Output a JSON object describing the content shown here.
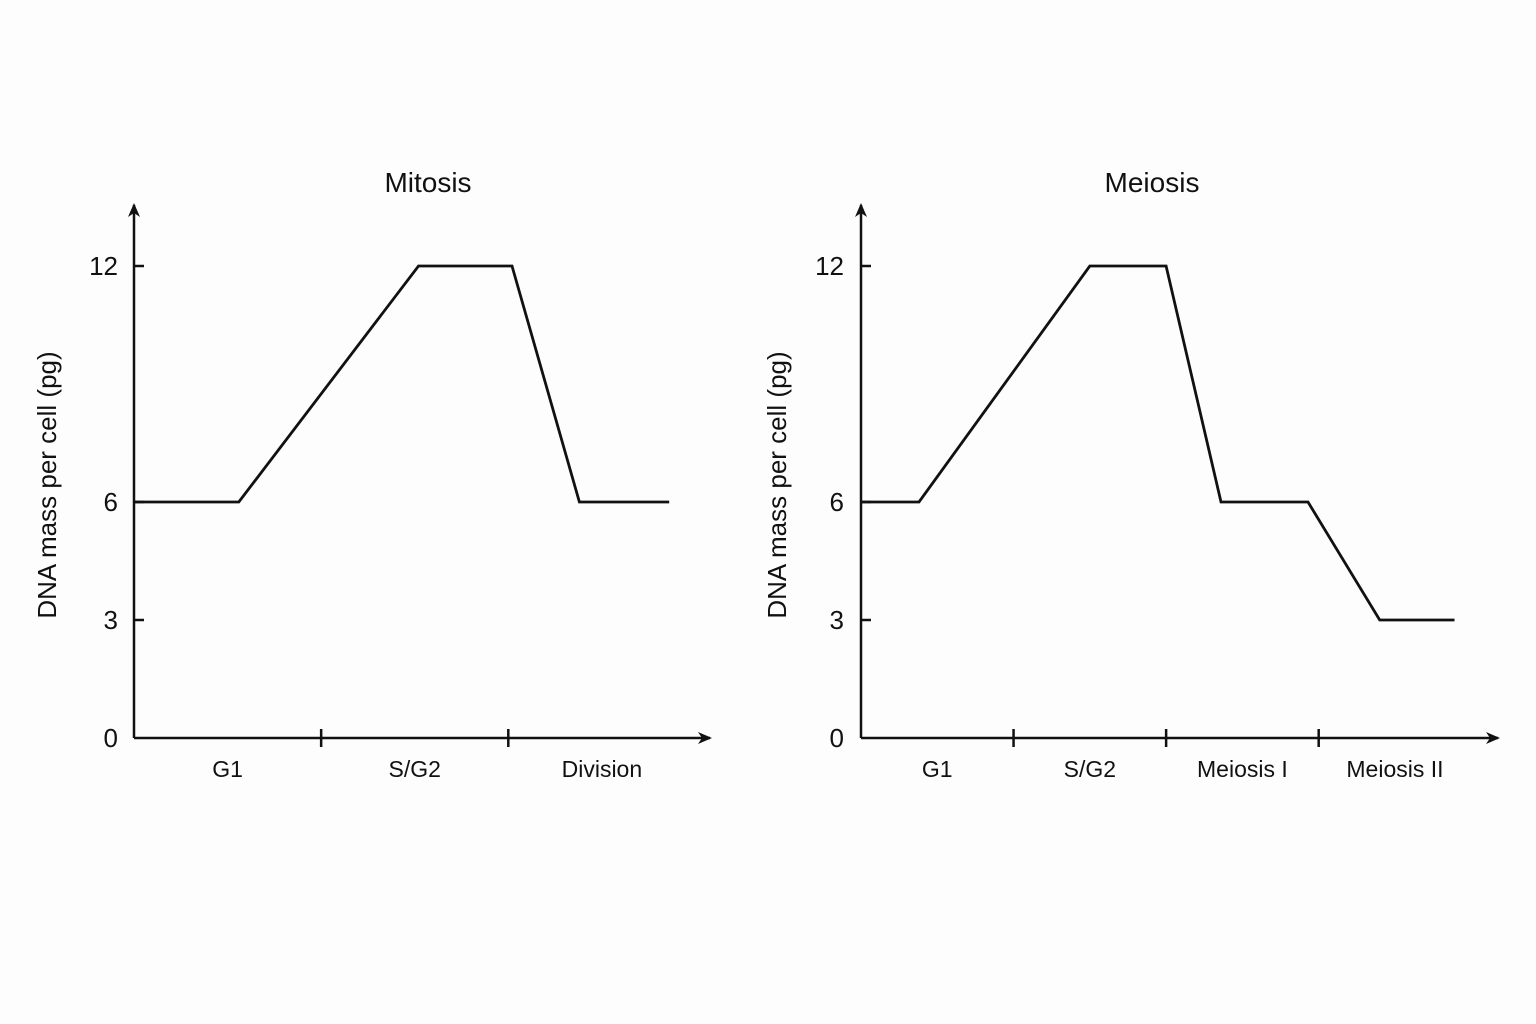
{
  "chart_data": [
    {
      "type": "line",
      "title": "Mitosis",
      "xlabel": "",
      "ylabel": "DNA mass per cell (pg)",
      "yticks": [
        0,
        3,
        6,
        12
      ],
      "categories": [
        "G1",
        "S/G2",
        "Division"
      ],
      "category_bounds": [
        0,
        1,
        2,
        3
      ],
      "x_max": 3.1,
      "y_max": 14,
      "series": [
        {
          "x": [
            0,
            0.56,
            1.52,
            2.02,
            2.38,
            2.86
          ],
          "y": [
            6,
            6,
            12,
            12,
            6,
            6
          ]
        }
      ]
    },
    {
      "type": "line",
      "title": "Meiosis",
      "xlabel": "",
      "ylabel": "DNA mass per cell (pg)",
      "yticks": [
        0,
        3,
        6,
        12
      ],
      "categories": [
        "G1",
        "S/G2",
        "Meiosis I",
        "Meiosis II"
      ],
      "category_bounds": [
        0,
        1,
        2,
        3,
        4
      ],
      "x_max": 4.2,
      "y_max": 14,
      "series": [
        {
          "x": [
            0,
            0.38,
            1.5,
            2.0,
            2.36,
            2.93,
            3.4,
            3.89
          ],
          "y": [
            6,
            6,
            12,
            12,
            6,
            6,
            3,
            3
          ]
        }
      ]
    }
  ]
}
